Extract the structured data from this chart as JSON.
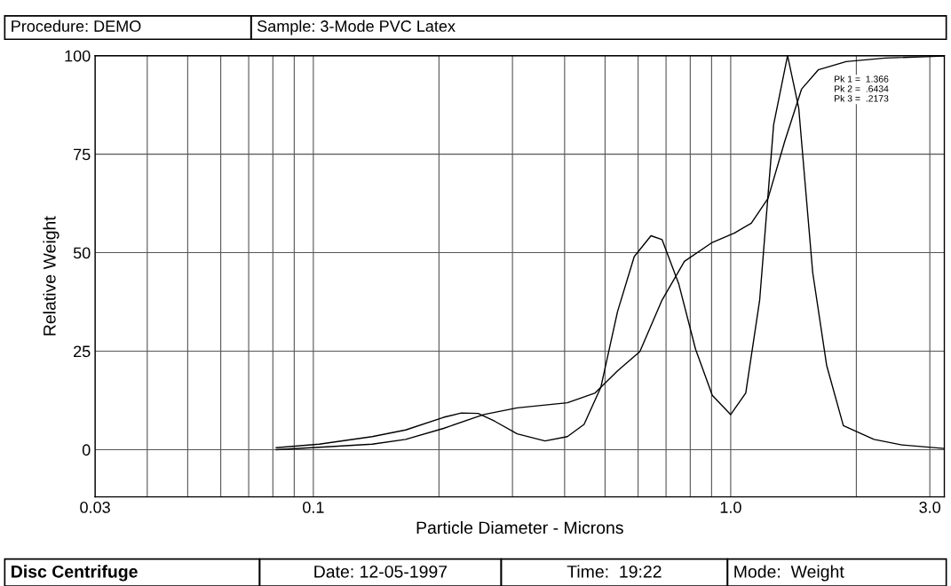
{
  "chart_data": {
    "type": "line",
    "xlabel": "Particle Diameter - Microns",
    "ylabel": "Relative Weight",
    "annotations": [
      "Procedure: DEMO",
      "Sample: 3-Mode PVC Latex",
      "Pk 1 =  1.366",
      "Pk 2 =  .6434",
      "Pk 3 =  .2173",
      "Disc Centrifuge",
      "Date: 12-05-1997",
      "Time:  19:22",
      "Mode:  Weight"
    ],
    "series": [
      {
        "color": "#000000",
        "x": [
          0.0815,
          0.1033,
          0.1384,
          0.1664,
          0.2051,
          0.2263,
          0.2482,
          0.2722,
          0.3079,
          0.359,
          0.4061,
          0.4453,
          0.4884,
          0.5355,
          0.5873,
          0.6442,
          0.685,
          0.7512,
          0.8237,
          0.9035,
          1.0,
          1.0866,
          1.1734,
          1.2673,
          1.3686,
          1.4555,
          1.5719,
          1.6977,
          1.8617,
          2.2042,
          2.5713,
          3.2381
        ],
        "values": [
          0.5,
          1.4,
          3.3,
          5,
          8.2,
          9.3,
          9.2,
          7.2,
          4,
          2.2,
          3.3,
          6.4,
          15.8,
          35,
          49,
          54.3,
          53.3,
          42,
          25.5,
          13.8,
          8.9,
          14.4,
          38,
          82.5,
          100,
          86.7,
          45,
          21.4,
          6.1,
          2.6,
          1.2,
          0.3
        ]
      },
      {
        "color": "#000000",
        "x": [
          0.0815,
          0.1033,
          0.1384,
          0.1664,
          0.2051,
          0.256,
          0.3079,
          0.4061,
          0.4735,
          0.5355,
          0.6058,
          0.685,
          0.7746,
          0.9035,
          1.0218,
          1.1205,
          1.2288,
          1.3477,
          1.4781,
          1.6208,
          1.8906,
          2.3442,
          3.2381
        ],
        "values": [
          0,
          0.6,
          1.4,
          2.6,
          5.4,
          8.9,
          10.6,
          11.9,
          14.4,
          20,
          24.9,
          38,
          47.8,
          52.6,
          55,
          57.5,
          63.8,
          78.3,
          91.5,
          96.4,
          98.5,
          99.4,
          99.9
        ]
      }
    ],
    "log": "x",
    "xlim": [
      0.03,
      3.25
    ],
    "ylim": [
      -12,
      100
    ],
    "xticks": [
      0.03,
      {
        "value": 0.04,
        "label": null
      },
      {
        "value": 0.05,
        "label": null
      },
      {
        "value": 0.06,
        "label": null
      },
      {
        "value": 0.07,
        "label": null
      },
      {
        "value": 0.08,
        "label": null
      },
      {
        "value": 0.09,
        "label": null
      },
      0.1,
      {
        "value": 0.2,
        "label": null
      },
      {
        "value": 0.3,
        "label": null
      },
      {
        "value": 0.4,
        "label": null
      },
      {
        "value": 0.5,
        "label": null
      },
      {
        "value": 0.6,
        "label": null
      },
      {
        "value": 0.7,
        "label": null
      },
      {
        "value": 0.8,
        "label": null
      },
      {
        "value": 0.9,
        "label": null
      },
      {
        "value": 1.0,
        "label": "1.0"
      },
      {
        "value": 2,
        "label": null
      },
      {
        "value": 3,
        "label": "3.0"
      }
    ],
    "yticks": [
      0,
      25,
      50,
      75,
      100
    ],
    "grid": true
  }
}
